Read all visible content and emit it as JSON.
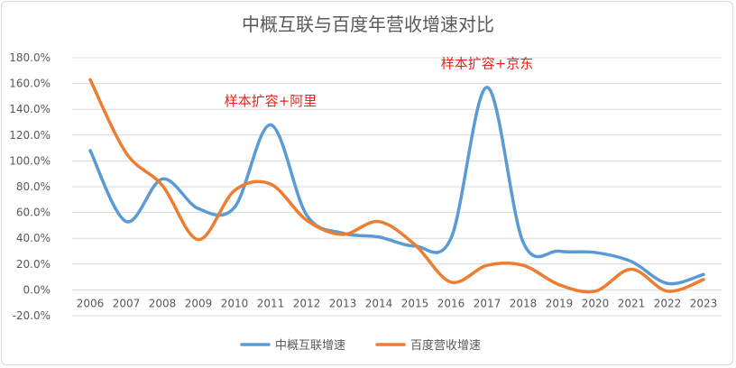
{
  "chart_data": {
    "type": "line",
    "title": "中概互联与百度年营收增速对比",
    "x": [
      "2006",
      "2007",
      "2008",
      "2009",
      "2010",
      "2011",
      "2012",
      "2013",
      "2014",
      "2015",
      "2016",
      "2017",
      "2018",
      "2019",
      "2020",
      "2021",
      "2022",
      "2023"
    ],
    "series": [
      {
        "name": "中概互联增速",
        "color": "#5b9bd5",
        "values": [
          108,
          53,
          86,
          63,
          64,
          128,
          58,
          44,
          41,
          34,
          40,
          157,
          37,
          30,
          29,
          22,
          5,
          12
        ]
      },
      {
        "name": "百度营收增速",
        "color": "#ed7d31",
        "values": [
          163,
          106,
          81,
          39,
          77,
          82,
          54,
          43,
          53,
          35,
          6,
          19,
          19,
          4,
          -1,
          16,
          -1,
          8
        ]
      }
    ],
    "ylim": [
      -20,
      180
    ],
    "yticks": [
      -20,
      0,
      20,
      40,
      60,
      80,
      100,
      120,
      140,
      160,
      180
    ],
    "ytick_labels": [
      "-20.0%",
      "0.0%",
      "20.0%",
      "40.0%",
      "60.0%",
      "80.0%",
      "100.0%",
      "120.0%",
      "140.0%",
      "160.0%",
      "180.0%"
    ],
    "grid": true,
    "legend_position": "bottom",
    "annotations": [
      {
        "text": "样本扩容+阿里",
        "x": "2011",
        "y": 143
      },
      {
        "text": "样本扩容+京东",
        "x": "2017",
        "y": 172
      }
    ]
  }
}
